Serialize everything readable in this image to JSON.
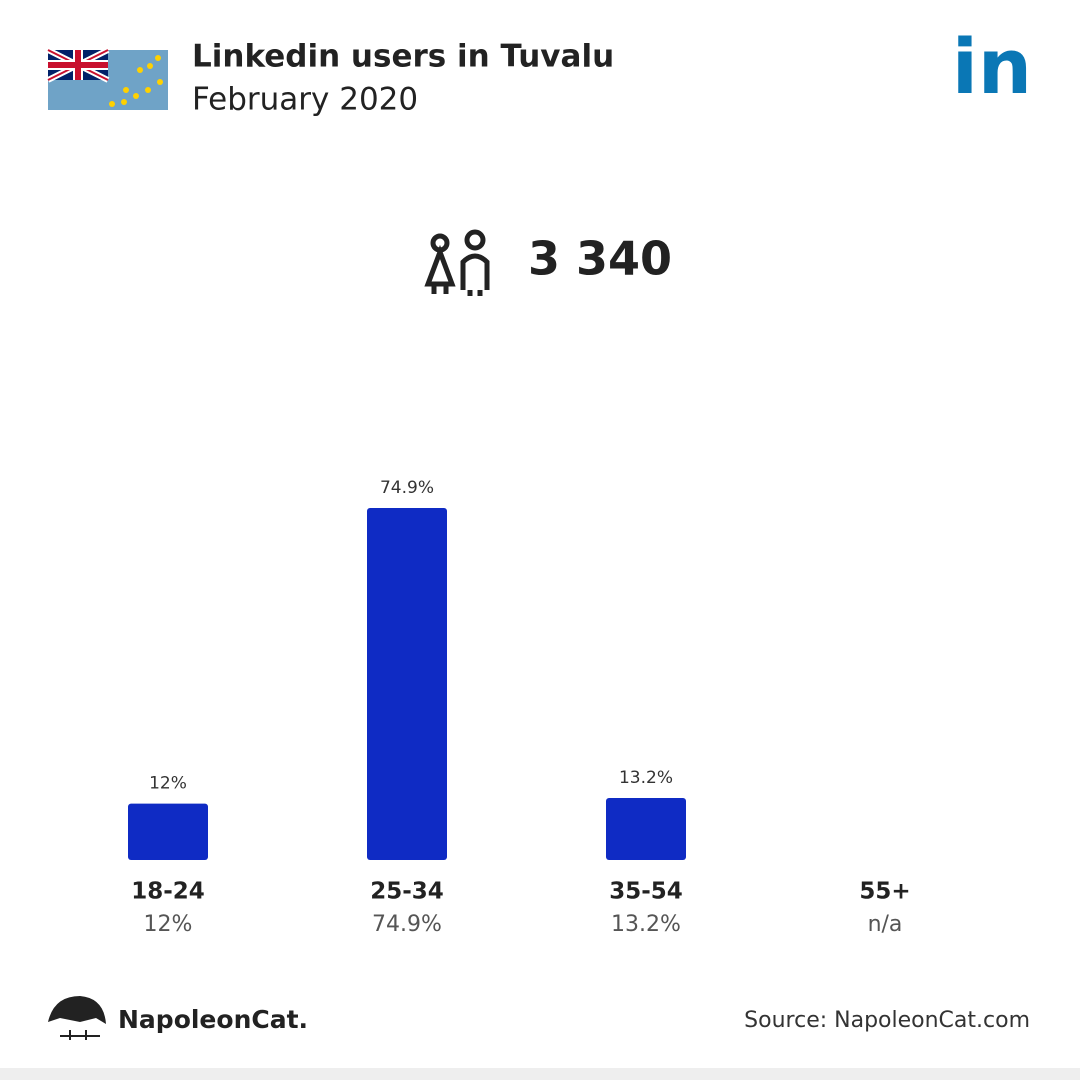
{
  "chart_data": {
    "type": "bar",
    "title": "Linkedin users in Tuvalu",
    "subtitle": "February 2020",
    "brand_icon": "in",
    "total_users": "3 340",
    "categories": [
      "18-24",
      "25-34",
      "35-54",
      "55+"
    ],
    "values": [
      12,
      74.9,
      13.2,
      null
    ],
    "value_labels": [
      "12%",
      "74.9%",
      "13.2%",
      "n/a"
    ],
    "color": "#0f2bc4",
    "brand": "NapoleonCat.",
    "source": "Source: NapoleonCat.com"
  }
}
